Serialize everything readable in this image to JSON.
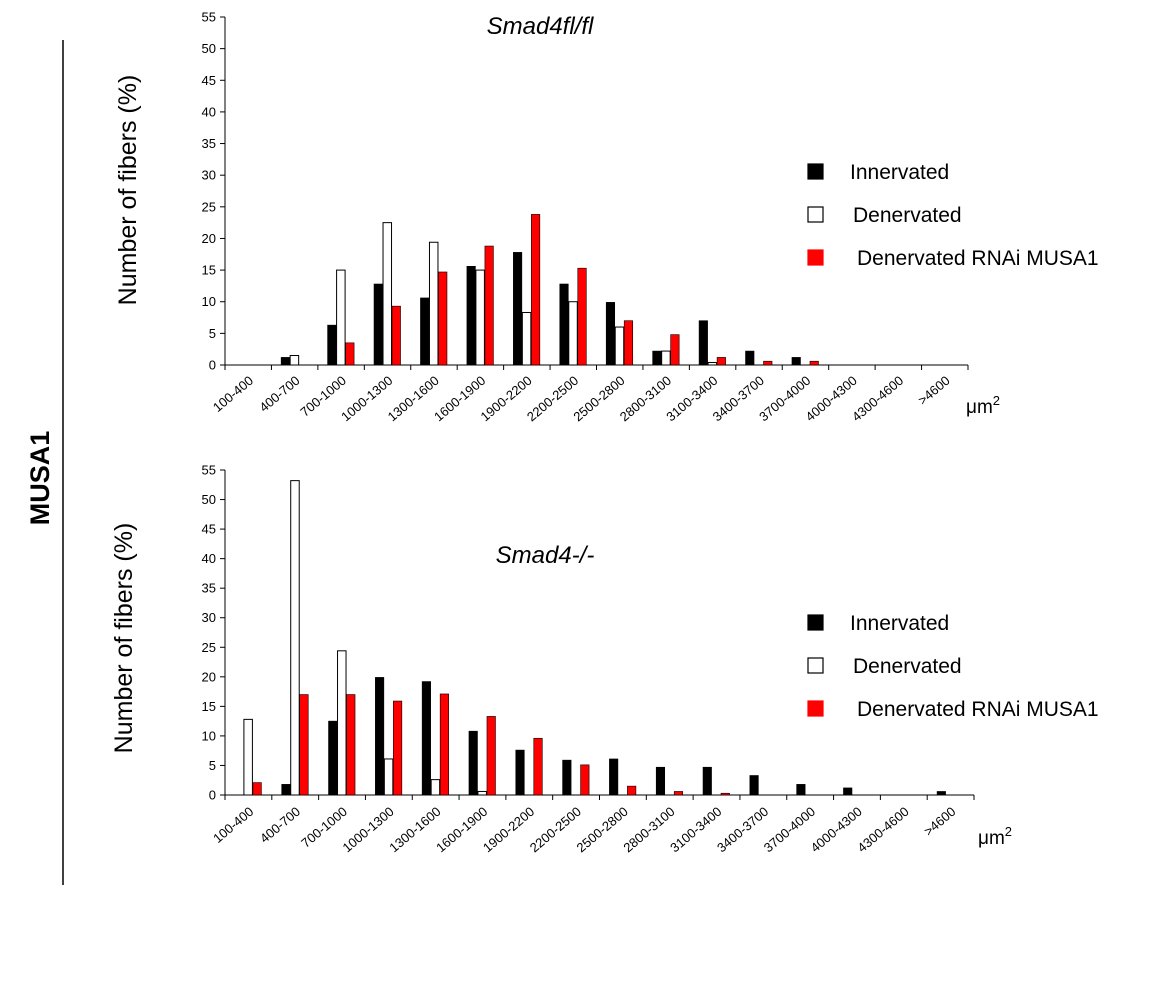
{
  "side_label": "MUSA1",
  "chart_data": [
    {
      "type": "bar",
      "title": "Smad4fl/fl",
      "ylabel": "Number of fibers (%)",
      "xunit": "μm",
      "xunit_sup": "2",
      "ylim": [
        0,
        55
      ],
      "yticks": [
        0,
        5,
        10,
        15,
        20,
        25,
        30,
        35,
        40,
        45,
        50,
        55
      ],
      "categories": [
        "100-400",
        "400-700",
        "700-1000",
        "1000-1300",
        "1300-1600",
        "1600-1900",
        "1900-2200",
        "2200-2500",
        "2500-2800",
        "2800-3100",
        "3100-3400",
        "3400-3700",
        "3700-4000",
        "4000-4300",
        "4300-4600",
        ">4600"
      ],
      "legend": "right",
      "series": [
        {
          "name": "Innervated",
          "color": "#000000",
          "style": "filled",
          "values": [
            0,
            1.2,
            6.3,
            12.8,
            10.6,
            15.6,
            17.8,
            12.8,
            9.9,
            2.2,
            7.0,
            2.2,
            1.2,
            0,
            0,
            0
          ]
        },
        {
          "name": "Denervated",
          "color": "#ffffff",
          "style": "outline",
          "values": [
            0,
            1.5,
            15.0,
            22.5,
            19.4,
            15.0,
            8.3,
            10.0,
            6.0,
            2.2,
            0.4,
            0,
            0,
            0,
            0,
            0
          ]
        },
        {
          "name": "Denervated RNAi MUSA1",
          "color": "#ff0000",
          "style": "filled",
          "values": [
            0,
            0,
            3.5,
            9.3,
            14.7,
            18.8,
            23.8,
            15.3,
            7.0,
            4.8,
            1.2,
            0.6,
            0.6,
            0,
            0,
            0
          ]
        }
      ]
    },
    {
      "type": "bar",
      "title": "Smad4-/-",
      "ylabel": "Number of fibers (%)",
      "xunit": "μm",
      "xunit_sup": "2",
      "ylim": [
        0,
        55
      ],
      "yticks": [
        0,
        5,
        10,
        15,
        20,
        25,
        30,
        35,
        40,
        45,
        50,
        55
      ],
      "categories": [
        "100-400",
        "400-700",
        "700-1000",
        "1000-1300",
        "1300-1600",
        "1600-1900",
        "1900-2200",
        "2200-2500",
        "2500-2800",
        "2800-3100",
        "3100-3400",
        "3400-3700",
        "3700-4000",
        "4000-4300",
        "4300-4600",
        ">4600"
      ],
      "legend": "right",
      "series": [
        {
          "name": "Innervated",
          "color": "#000000",
          "style": "filled",
          "values": [
            0,
            1.8,
            12.5,
            19.9,
            19.2,
            10.8,
            7.6,
            5.9,
            6.1,
            4.7,
            4.7,
            3.3,
            1.8,
            1.2,
            0,
            0.6
          ]
        },
        {
          "name": "Denervated",
          "color": "#ffffff",
          "style": "outline",
          "values": [
            12.8,
            53.2,
            24.4,
            6.1,
            2.6,
            0.6,
            0,
            0,
            0,
            0,
            0,
            0,
            0,
            0,
            0,
            0
          ]
        },
        {
          "name": "Denervated RNAi MUSA1",
          "color": "#ff0000",
          "style": "filled",
          "values": [
            2.1,
            17.0,
            17.0,
            15.9,
            17.1,
            13.3,
            9.6,
            5.1,
            1.5,
            0.6,
            0.3,
            0,
            0,
            0,
            0,
            0
          ]
        }
      ]
    }
  ]
}
